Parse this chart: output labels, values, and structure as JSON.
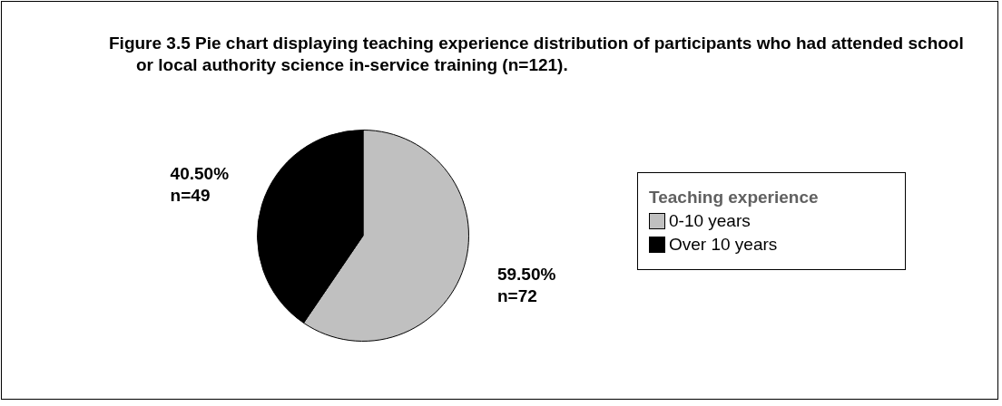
{
  "chart_data": {
    "type": "pie",
    "title": "Figure 3.5 Pie chart displaying teaching experience distribution of participants who had attended school or local authority science in-service training (n=121).",
    "legend_title": "Teaching experience",
    "legend": "right",
    "categories": [
      "0-10 years",
      "Over 10 years"
    ],
    "values": [
      72,
      49
    ],
    "value_labels": [
      "59.50%\nn=72",
      "40.50%\nn=49"
    ],
    "colors": [
      "#c0c0c0",
      "#000000"
    ]
  }
}
